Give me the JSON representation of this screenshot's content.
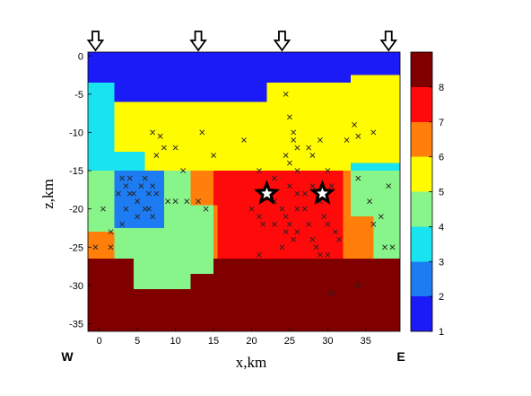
{
  "chart_data": {
    "type": "heatmap",
    "xlabel": "x,km",
    "ylabel": "z,km",
    "xlim": [
      -1.5,
      39.5
    ],
    "ylim": [
      -36,
      0.5
    ],
    "x_ticks": [
      0,
      5,
      10,
      15,
      20,
      25,
      30,
      35
    ],
    "y_ticks": [
      0,
      -5,
      -10,
      -15,
      -20,
      -25,
      -30,
      -35
    ],
    "colorbar": {
      "ticks": [
        1,
        2,
        3,
        4,
        5,
        6,
        7,
        8
      ],
      "range": [
        1,
        9
      ],
      "classes": [
        {
          "value": 1,
          "color": "#1b1bf7"
        },
        {
          "value": 2,
          "color": "#1e7cf2"
        },
        {
          "value": 3,
          "color": "#18e3ee"
        },
        {
          "value": 4,
          "color": "#88f58a"
        },
        {
          "value": 5,
          "color": "#fffb00"
        },
        {
          "value": 6,
          "color": "#ff7f0a"
        },
        {
          "value": 7,
          "color": "#ff0a0a"
        },
        {
          "value": 8,
          "color": "#800000"
        }
      ]
    },
    "model_cells": [
      {
        "x": [
          -1.5,
          39.5
        ],
        "z": [
          -36,
          0.5
        ],
        "class": 8
      },
      {
        "x": [
          -1.5,
          39.5
        ],
        "z": [
          -3.5,
          0.5
        ],
        "class": 1
      },
      {
        "x": [
          -1.5,
          22
        ],
        "z": [
          -6,
          -3.5
        ],
        "class": 1
      },
      {
        "x": [
          22,
          39.5
        ],
        "z": [
          -6,
          -3.5
        ],
        "class": 5
      },
      {
        "x": [
          -1.5,
          33
        ],
        "z": [
          -3.5,
          -2.5
        ],
        "class": 1
      },
      {
        "x": [
          33,
          39.5
        ],
        "z": [
          -3.5,
          -2.5
        ],
        "class": 5
      },
      {
        "x": [
          -1.5,
          2
        ],
        "z": [
          -15,
          -3.5
        ],
        "class": 3
      },
      {
        "x": [
          2,
          39.5
        ],
        "z": [
          -12.5,
          -6
        ],
        "class": 5
      },
      {
        "x": [
          2,
          39.5
        ],
        "z": [
          -15,
          -12.5
        ],
        "class": 5
      },
      {
        "x": [
          2,
          6
        ],
        "z": [
          -15,
          -12.5
        ],
        "class": 3
      },
      {
        "x": [
          33,
          39.5
        ],
        "z": [
          -14,
          -12.5
        ],
        "class": 5
      },
      {
        "x": [
          33,
          39.5
        ],
        "z": [
          -15,
          -14
        ],
        "class": 3
      },
      {
        "x": [
          -1.5,
          2
        ],
        "z": [
          -23,
          -15
        ],
        "class": 4
      },
      {
        "x": [
          -1.5,
          2
        ],
        "z": [
          -26.5,
          -23
        ],
        "class": 6
      },
      {
        "x": [
          2,
          8.5
        ],
        "z": [
          -26.5,
          -15
        ],
        "class": 4
      },
      {
        "x": [
          2,
          8.5
        ],
        "z": [
          -22.5,
          -15
        ],
        "class": 2
      },
      {
        "x": [
          8.5,
          12
        ],
        "z": [
          -26.5,
          -15
        ],
        "class": 4
      },
      {
        "x": [
          12,
          15
        ],
        "z": [
          -26.5,
          -15
        ],
        "class": 4
      },
      {
        "x": [
          12,
          15
        ],
        "z": [
          -19.5,
          -15
        ],
        "class": 6
      },
      {
        "x": [
          15,
          18.5
        ],
        "z": [
          -15,
          -15
        ],
        "class": 4
      },
      {
        "x": [
          15,
          18.5
        ],
        "z": [
          -26.5,
          -15
        ],
        "class": 7
      },
      {
        "x": [
          15,
          15.5
        ],
        "z": [
          -26.5,
          -19.5
        ],
        "class": 6
      },
      {
        "x": [
          18.5,
          32
        ],
        "z": [
          -26.5,
          -15
        ],
        "class": 7
      },
      {
        "x": [
          32,
          33
        ],
        "z": [
          -26.5,
          -15
        ],
        "class": 6
      },
      {
        "x": [
          33,
          39.5
        ],
        "z": [
          -26.5,
          -15
        ],
        "class": 4
      },
      {
        "x": [
          33,
          36
        ],
        "z": [
          -26.5,
          -21
        ],
        "class": 6
      },
      {
        "x": [
          2,
          12
        ],
        "z": [
          -30.5,
          -26.5
        ],
        "class": 4
      },
      {
        "x": [
          2,
          4.5
        ],
        "z": [
          -30.5,
          -26.5
        ],
        "class": 8
      },
      {
        "x": [
          12,
          15
        ],
        "z": [
          -28.5,
          -26.5
        ],
        "class": 4
      }
    ],
    "stations": [
      -0.5,
      13,
      24,
      38
    ],
    "epicenters": [
      {
        "x": 22,
        "z": -18
      },
      {
        "x": 29.3,
        "z": -18
      }
    ],
    "events": [
      [
        7,
        -10
      ],
      [
        8,
        -10.5
      ],
      [
        8.5,
        -12
      ],
      [
        7.5,
        -13
      ],
      [
        10,
        -12
      ],
      [
        11,
        -15
      ],
      [
        13.5,
        -10
      ],
      [
        15,
        -13
      ],
      [
        19,
        -11
      ],
      [
        21,
        -15
      ],
      [
        24.5,
        -5
      ],
      [
        25,
        -8
      ],
      [
        25.5,
        -10
      ],
      [
        25.5,
        -11
      ],
      [
        26,
        -12
      ],
      [
        24.5,
        -13
      ],
      [
        25,
        -14
      ],
      [
        26,
        -15
      ],
      [
        27.5,
        -12
      ],
      [
        28,
        -13
      ],
      [
        29,
        -11
      ],
      [
        30,
        -15
      ],
      [
        32.5,
        -11
      ],
      [
        33.5,
        -9
      ],
      [
        34,
        -10.5
      ],
      [
        36,
        -10
      ],
      [
        3,
        -16
      ],
      [
        3.5,
        -17
      ],
      [
        4,
        -18
      ],
      [
        4.5,
        -18
      ],
      [
        5,
        -19
      ],
      [
        5.5,
        -17
      ],
      [
        6,
        -16
      ],
      [
        6.5,
        -18
      ],
      [
        7,
        -17
      ],
      [
        7.5,
        -18
      ],
      [
        3.5,
        -20
      ],
      [
        5,
        -21
      ],
      [
        6,
        -20
      ],
      [
        6.5,
        -20
      ],
      [
        4,
        -16
      ],
      [
        3,
        -22
      ],
      [
        7,
        -21
      ],
      [
        2.5,
        -18
      ],
      [
        0.5,
        -20
      ],
      [
        1.5,
        -25
      ],
      [
        1.5,
        -23
      ],
      [
        -0.5,
        -25
      ],
      [
        9,
        -19
      ],
      [
        10,
        -19
      ],
      [
        11.5,
        -19
      ],
      [
        13,
        -19
      ],
      [
        14,
        -20
      ],
      [
        20,
        -20
      ],
      [
        21,
        -21
      ],
      [
        21.5,
        -22
      ],
      [
        22,
        -18
      ],
      [
        23,
        -19
      ],
      [
        23,
        -22
      ],
      [
        24,
        -20
      ],
      [
        24.5,
        -21
      ],
      [
        25,
        -22
      ],
      [
        25.5,
        -24
      ],
      [
        26,
        -23
      ],
      [
        24.5,
        -23
      ],
      [
        24,
        -25
      ],
      [
        26,
        -18
      ],
      [
        26,
        -20
      ],
      [
        27,
        -20
      ],
      [
        27.5,
        -22
      ],
      [
        28,
        -17
      ],
      [
        28,
        -24
      ],
      [
        28.5,
        -25
      ],
      [
        29,
        -19
      ],
      [
        29.5,
        -21
      ],
      [
        30,
        -22
      ],
      [
        30.5,
        -17
      ],
      [
        31,
        -23
      ],
      [
        31.5,
        -24
      ],
      [
        30,
        -26
      ],
      [
        29,
        -26
      ],
      [
        21,
        -26
      ],
      [
        23,
        -16
      ],
      [
        25,
        -17
      ],
      [
        27,
        -18
      ],
      [
        30.5,
        -31
      ],
      [
        34,
        -30
      ],
      [
        34,
        -16
      ],
      [
        35.5,
        -19
      ],
      [
        36,
        -22
      ],
      [
        37,
        -21
      ],
      [
        37.5,
        -25
      ],
      [
        38,
        -17
      ],
      [
        38.5,
        -25
      ]
    ]
  },
  "labels": {
    "west": "W",
    "east": "E"
  },
  "colors": {
    "event_marker": "#222222",
    "star_outline": "#000000",
    "star_fill": "#ffffff"
  }
}
